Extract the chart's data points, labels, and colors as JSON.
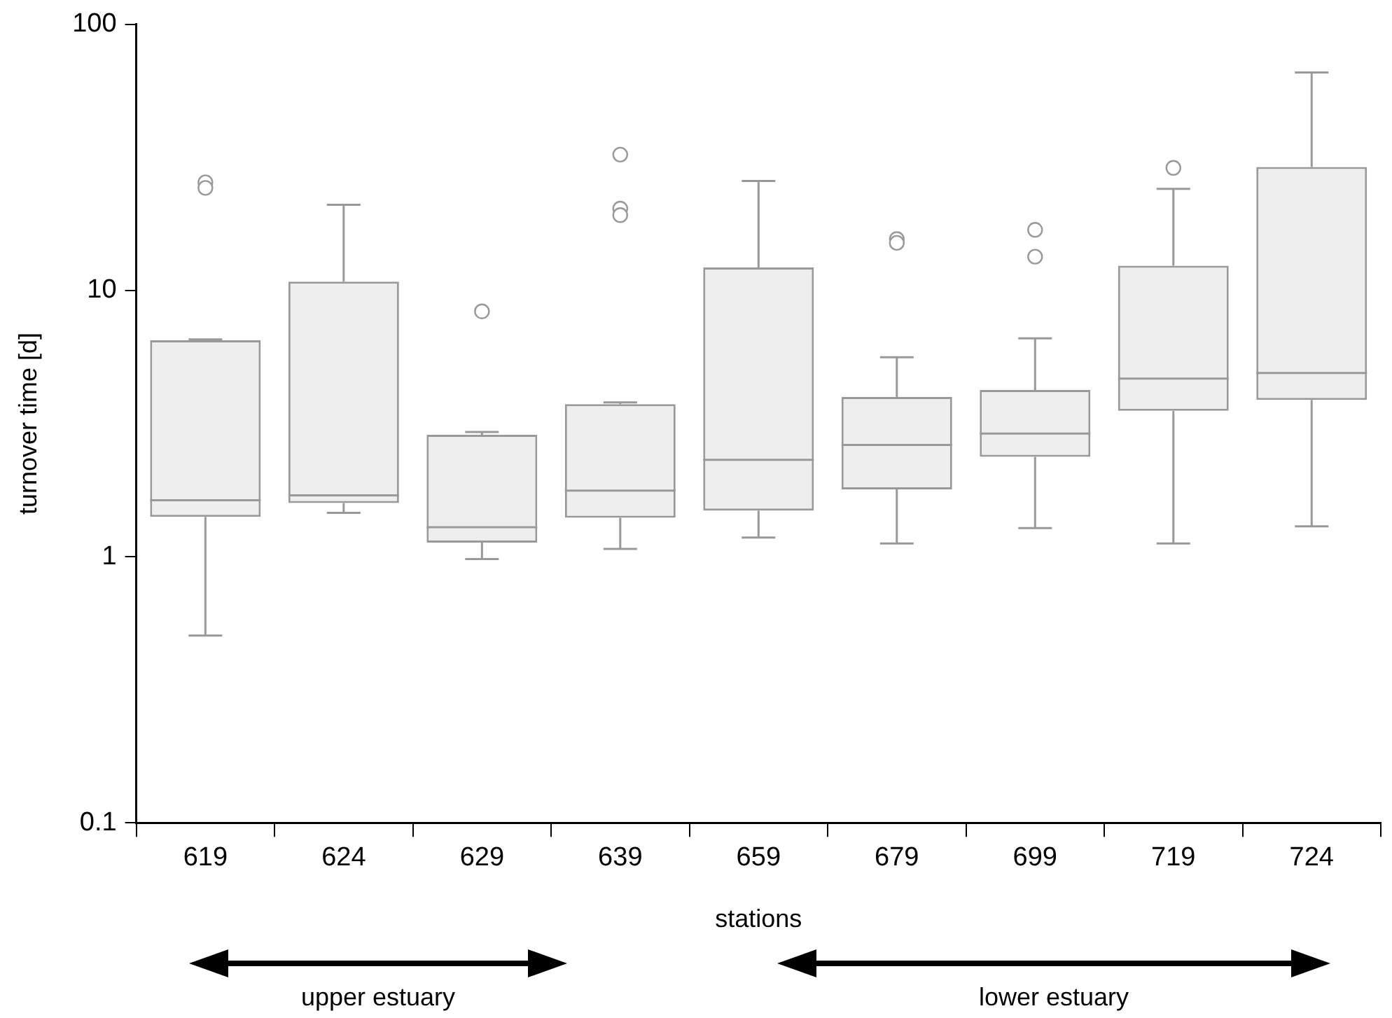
{
  "chart_data": {
    "type": "box",
    "xlabel": "stations",
    "ylabel": "turnover time [d]",
    "categories": [
      "619",
      "624",
      "629",
      "639",
      "659",
      "679",
      "699",
      "719",
      "724"
    ],
    "boxes": [
      {
        "low": 0.505,
        "q1": 1.41,
        "median": 1.63,
        "q3": 6.5,
        "high": 6.55,
        "outliers": [
          25.5,
          24.3
        ]
      },
      {
        "low": 1.46,
        "q1": 1.59,
        "median": 1.7,
        "q3": 10.8,
        "high": 21
      },
      {
        "low": 0.98,
        "q1": 1.13,
        "median": 1.29,
        "q3": 2.87,
        "high": 2.94,
        "outliers": [
          8.35
        ]
      },
      {
        "low": 1.07,
        "q1": 1.4,
        "median": 1.77,
        "q3": 3.74,
        "high": 3.8,
        "outliers": [
          32.4,
          20.3,
          19.2
        ]
      },
      {
        "low": 1.18,
        "q1": 1.49,
        "median": 2.31,
        "q3": 12.2,
        "high": 25.8
      },
      {
        "low": 1.12,
        "q1": 1.79,
        "median": 2.63,
        "q3": 3.98,
        "high": 5.61,
        "outliers": [
          15.6,
          15.1
        ]
      },
      {
        "low": 1.28,
        "q1": 2.37,
        "median": 2.9,
        "q3": 4.23,
        "high": 6.61,
        "outliers": [
          16.9,
          13.4
        ]
      },
      {
        "low": 1.12,
        "q1": 3.53,
        "median": 4.67,
        "q3": 12.4,
        "high": 24.1,
        "outliers": [
          28.9
        ]
      },
      {
        "low": 1.3,
        "q1": 3.88,
        "median": 4.9,
        "q3": 29.1,
        "high": 66
      }
    ],
    "color": "#999999",
    "log": true,
    "ylim": [
      0.1,
      100
    ],
    "yticks": [
      0.1,
      1,
      10,
      100
    ],
    "grid": false,
    "legend": false,
    "marker": "circle",
    "annotations": [
      "upper estuary",
      "lower estuary"
    ]
  }
}
